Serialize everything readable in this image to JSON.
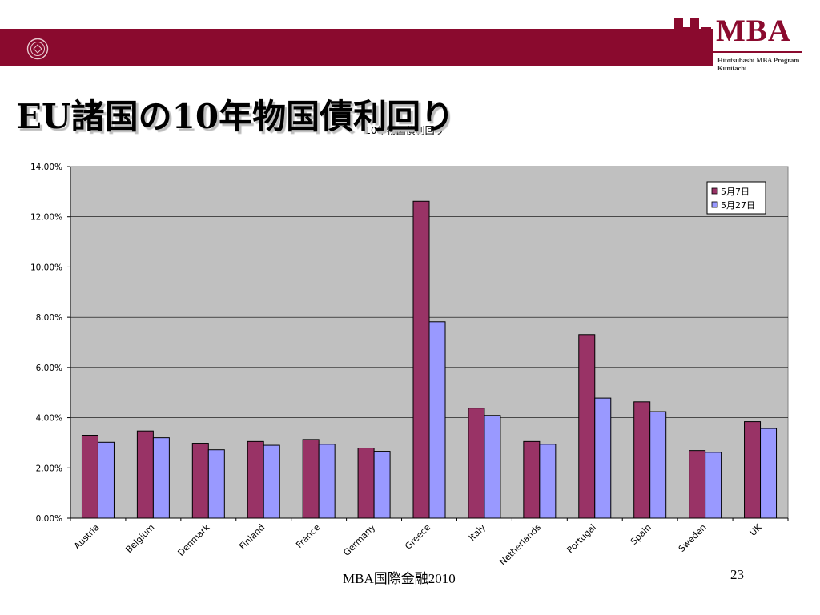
{
  "slide": {
    "title": "EU諸国の10年物国債利回り",
    "footer": "MBA国際金融2010",
    "page_number": "23"
  },
  "logo": {
    "text": "MBA",
    "sub_line1": "Hitotsubashi MBA Program",
    "sub_line2": "Kunitachi",
    "color": "#8a0a2e"
  },
  "colors": {
    "band": "#8a0a2e",
    "plot_bg": "#c0c0c0",
    "series1": "#993366",
    "series2": "#9999ff"
  },
  "chart_data": {
    "type": "bar",
    "title": "10年物国債利回り",
    "xlabel": "",
    "ylabel": "",
    "categories": [
      "Austria",
      "Belgium",
      "Denmark",
      "Finland",
      "France",
      "Germany",
      "Greece",
      "Italy",
      "Netherlands",
      "Portugal",
      "Spain",
      "Sweden",
      "UK"
    ],
    "series": [
      {
        "name": "5月7日",
        "color": "#993366",
        "values": [
          3.3,
          3.47,
          2.98,
          3.05,
          3.13,
          2.79,
          12.62,
          4.38,
          3.05,
          7.31,
          4.63,
          2.69,
          3.84
        ]
      },
      {
        "name": "5月27日",
        "color": "#9999ff",
        "values": [
          3.02,
          3.2,
          2.72,
          2.9,
          2.94,
          2.66,
          7.82,
          4.09,
          2.94,
          4.78,
          4.24,
          2.62,
          3.57
        ]
      }
    ],
    "ylim": [
      0,
      14
    ],
    "yticks": [
      "0.00%",
      "2.00%",
      "4.00%",
      "6.00%",
      "8.00%",
      "10.00%",
      "12.00%",
      "14.00%"
    ],
    "grid": true,
    "legend": "top-right"
  }
}
